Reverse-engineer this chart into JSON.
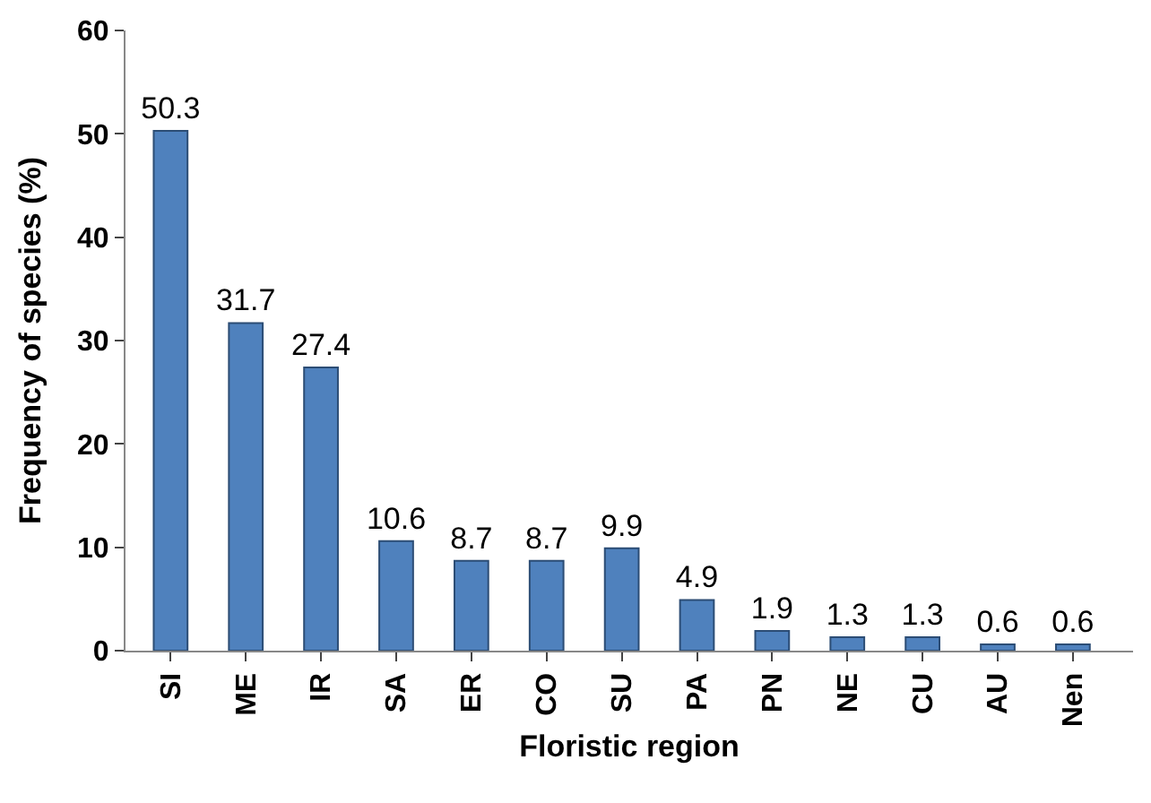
{
  "chart_data": {
    "type": "bar",
    "xlabel": "Floristic region",
    "ylabel": "Frequency of species (%)",
    "categories": [
      "SI",
      "ME",
      "IR",
      "SA",
      "ER",
      "CO",
      "SU",
      "PA",
      "PN",
      "NE",
      "CU",
      "AU",
      "Nen"
    ],
    "values": [
      50.3,
      31.7,
      27.4,
      10.6,
      8.7,
      8.7,
      9.9,
      4.9,
      1.9,
      1.3,
      1.3,
      0.6,
      0.6
    ],
    "color": "#4f81bd",
    "ylim": [
      0,
      60
    ],
    "yticks": [
      0,
      10,
      20,
      30,
      40,
      50,
      60
    ],
    "data_labels": true
  }
}
